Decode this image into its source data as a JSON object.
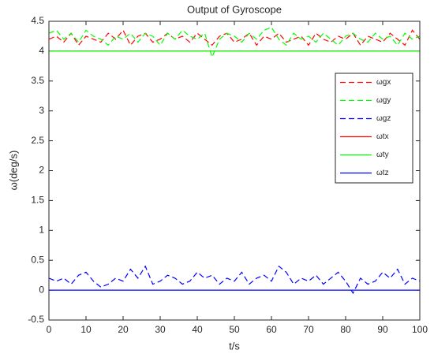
{
  "chart_data": {
    "type": "line",
    "title": "Output of Gyroscope",
    "x_label": "t/s",
    "y_label": "ω(deg/s)",
    "x": [
      0,
      2,
      4,
      6,
      8,
      10,
      12,
      14,
      16,
      18,
      20,
      22,
      24,
      26,
      28,
      30,
      32,
      34,
      36,
      38,
      40,
      42,
      44,
      46,
      48,
      50,
      52,
      54,
      56,
      58,
      60,
      62,
      64,
      66,
      68,
      70,
      72,
      74,
      76,
      78,
      80,
      82,
      84,
      86,
      88,
      90,
      92,
      94,
      96,
      98,
      100
    ],
    "series": [
      {
        "name": "ωgx",
        "color": "#ff0000",
        "style": "dashed",
        "values": [
          4.2,
          4.25,
          4.15,
          4.3,
          4.1,
          4.25,
          4.2,
          4.15,
          4.3,
          4.2,
          4.35,
          4.1,
          4.25,
          4.3,
          4.15,
          4.2,
          4.3,
          4.2,
          4.25,
          4.15,
          4.3,
          4.2,
          4.1,
          4.25,
          4.3,
          4.15,
          4.2,
          4.3,
          4.1,
          4.25,
          4.2,
          4.3,
          4.15,
          4.2,
          4.25,
          4.1,
          4.3,
          4.2,
          4.15,
          4.25,
          4.2,
          4.3,
          4.1,
          4.25,
          4.2,
          4.15,
          4.3,
          4.2,
          4.1,
          4.35,
          4.2
        ]
      },
      {
        "name": "ωgy",
        "color": "#00ff00",
        "style": "dashed",
        "values": [
          4.3,
          4.35,
          4.2,
          4.3,
          4.15,
          4.35,
          4.25,
          4.2,
          4.1,
          4.25,
          4.2,
          4.3,
          4.15,
          4.3,
          4.25,
          4.1,
          4.3,
          4.2,
          4.35,
          4.25,
          4.2,
          4.3,
          3.9,
          4.2,
          4.3,
          4.25,
          4.15,
          4.3,
          4.2,
          4.35,
          4.4,
          4.2,
          4.1,
          4.3,
          4.2,
          4.25,
          4.15,
          4.3,
          4.2,
          4.1,
          4.25,
          4.3,
          4.2,
          4.15,
          4.3,
          4.2,
          4.25,
          4.1,
          4.3,
          4.2,
          4.25
        ]
      },
      {
        "name": "ωgz",
        "color": "#0000ff",
        "style": "dashed",
        "values": [
          0.2,
          0.15,
          0.2,
          0.1,
          0.25,
          0.3,
          0.15,
          0.05,
          0.1,
          0.2,
          0.15,
          0.35,
          0.2,
          0.4,
          0.1,
          0.15,
          0.25,
          0.2,
          0.1,
          0.15,
          0.3,
          0.2,
          0.25,
          0.1,
          0.2,
          0.15,
          0.3,
          0.1,
          0.2,
          0.25,
          0.15,
          0.4,
          0.3,
          0.1,
          0.2,
          0.15,
          0.25,
          0.1,
          0.2,
          0.3,
          0.15,
          -0.05,
          0.2,
          0.1,
          0.15,
          0.3,
          0.2,
          0.35,
          0.1,
          0.2,
          0.15
        ]
      },
      {
        "name": "ωtx",
        "color": "#ff0000",
        "style": "solid",
        "x": [
          0,
          100
        ],
        "values": [
          4,
          4
        ]
      },
      {
        "name": "ωty",
        "color": "#00ff00",
        "style": "solid",
        "x": [
          0,
          100
        ],
        "values": [
          4,
          4
        ]
      },
      {
        "name": "ωtz",
        "color": "#0000ff",
        "style": "solid",
        "x": [
          0,
          100
        ],
        "values": [
          0,
          0
        ]
      }
    ],
    "xlim": [
      0,
      100
    ],
    "xticks": [
      0,
      10,
      20,
      30,
      40,
      50,
      60,
      70,
      80,
      90,
      100
    ],
    "ylim": [
      -0.5,
      4.5
    ],
    "yticks": [
      -0.5,
      0,
      0.5,
      1,
      1.5,
      2,
      2.5,
      3,
      3.5,
      4,
      4.5
    ],
    "legend": "right"
  }
}
